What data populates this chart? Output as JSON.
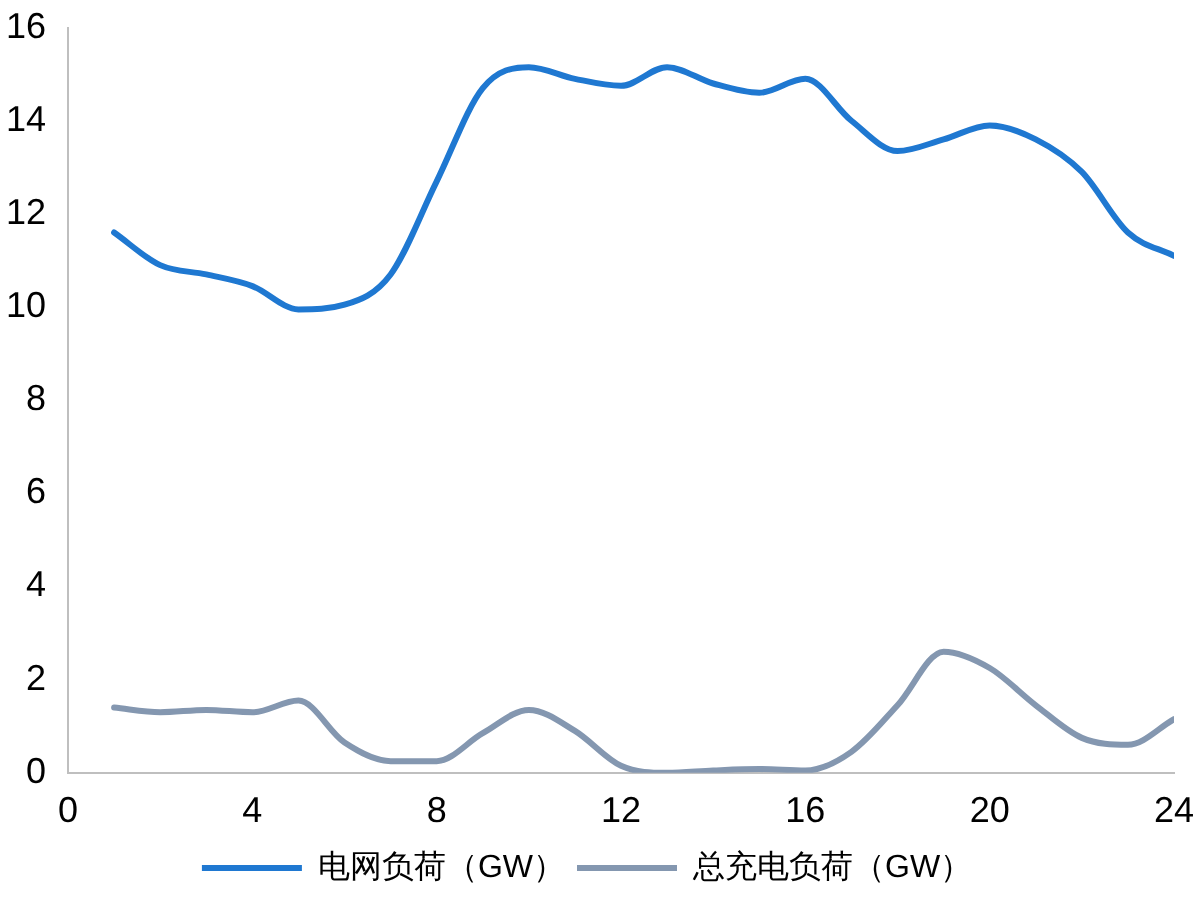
{
  "chart_data": {
    "type": "line",
    "x": [
      1,
      2,
      3,
      4,
      5,
      6,
      7,
      8,
      9,
      10,
      11,
      12,
      13,
      14,
      15,
      16,
      17,
      18,
      19,
      20,
      21,
      22,
      23,
      24
    ],
    "series": [
      {
        "name": "电网负荷（GW）",
        "color": "#1f78d1",
        "values": [
          11.6,
          10.9,
          10.7,
          10.45,
          9.95,
          10.05,
          10.7,
          12.7,
          14.7,
          15.15,
          14.9,
          14.75,
          15.15,
          14.8,
          14.6,
          14.9,
          14.0,
          13.35,
          13.6,
          13.9,
          13.6,
          12.9,
          11.6,
          11.1
        ]
      },
      {
        "name": "总充电负荷（GW）",
        "color": "#8497b0",
        "values": [
          1.4,
          1.3,
          1.35,
          1.3,
          1.55,
          0.65,
          0.25,
          0.25,
          0.85,
          1.35,
          0.9,
          0.15,
          0,
          0.05,
          0.08,
          0.05,
          0.45,
          1.45,
          2.6,
          2.25,
          1.45,
          0.75,
          0.6,
          1.15
        ]
      }
    ],
    "xlim": [
      0,
      24
    ],
    "xticks": [
      0,
      4,
      8,
      12,
      16,
      20,
      24
    ],
    "ylim": [
      0,
      16
    ],
    "yticks": [
      0,
      2,
      4,
      6,
      8,
      10,
      12,
      14,
      16
    ],
    "grid": false,
    "legend": "bottom",
    "marker": "none",
    "line_style": "solid"
  }
}
